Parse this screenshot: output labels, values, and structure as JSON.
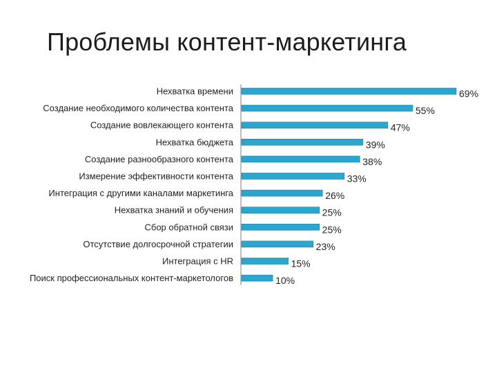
{
  "title": "Проблемы контент-маркетинга",
  "colors": {
    "bar": "#2aa6cf",
    "bar_edge": "#1a7fa3",
    "axis": "#7f7f7f"
  },
  "chart_data": {
    "type": "bar",
    "orientation": "horizontal",
    "title": "Проблемы контент-маркетинга",
    "xlabel": "",
    "ylabel": "",
    "xlim": [
      0,
      69
    ],
    "grid": false,
    "legend": "none",
    "value_suffix": "%",
    "categories": [
      "Нехватка времени",
      "Создание необходимого количества контента",
      "Создание вовлекающего контента",
      "Нехватка бюджета",
      "Создание разнообразного контента",
      "Измерение эффективности контента",
      "Интеграция с другими каналами маркетинга",
      "Нехватка знаний и обучения",
      "Сбор обратной связи",
      "Отсутствие долгосрочной стратегии",
      "Интеграция с HR",
      "Поиск профессиональных контент-маркетологов"
    ],
    "values": [
      69,
      55,
      47,
      39,
      38,
      33,
      26,
      25,
      25,
      23,
      15,
      10
    ],
    "value_labels": [
      "69%",
      "55%",
      "47%",
      "39%",
      "38%",
      "33%",
      "26%",
      "25%",
      "25%",
      "23%",
      "15%",
      "10%"
    ]
  }
}
